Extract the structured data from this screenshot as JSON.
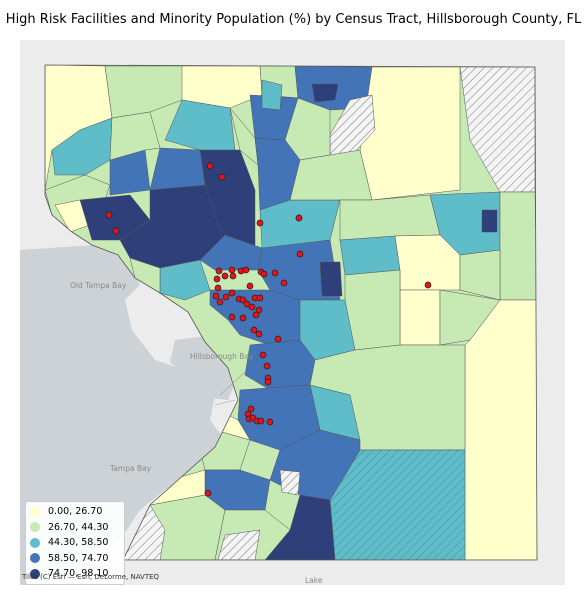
{
  "title": "High Risk Facilities and Minority Population (%) by Census Tract, Hillsborough County, FL",
  "colors": {
    "bin1": "#ffffcc",
    "bin2": "#c7e9b4",
    "bin3": "#5fbdc9",
    "bin4": "#4474b8",
    "bin5": "#2f3f7a",
    "water": "#cdd2d6",
    "land": "#ececec",
    "facility": "#e8121b",
    "hatch": "#8c8c8c"
  },
  "legend": {
    "items": [
      {
        "label": "0.00, 26.70",
        "color": "#ffffcc"
      },
      {
        "label": "26.70, 44.30",
        "color": "#c7e9b4"
      },
      {
        "label": "44.30, 58.50",
        "color": "#5fbdc9"
      },
      {
        "label": "58.50, 74.70",
        "color": "#4474b8"
      },
      {
        "label": "74.70, 98.10",
        "color": "#2f3f7a"
      }
    ]
  },
  "basemap_labels": {
    "old_tampa_bay": "Old Tampa Bay",
    "hillsborough_bay": "Hillsborough Bay",
    "tampa_bay": "Tampa Bay",
    "lake": "Lake"
  },
  "attribution": "Tiles (C) Esri — Esri, DeLorme, NAVTEQ"
}
